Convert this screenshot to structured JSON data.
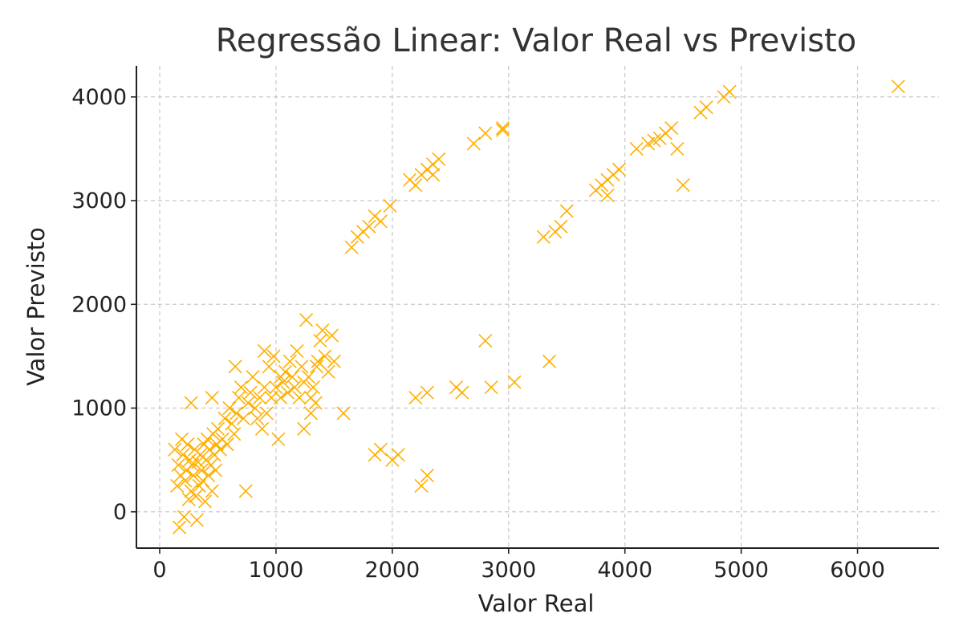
{
  "chart_data": {
    "type": "scatter",
    "title": "Regressão Linear: Valor Real vs Previsto",
    "xlabel": "Valor Real",
    "ylabel": "Valor Previsto",
    "xlim": [
      -200,
      6700
    ],
    "ylim": [
      -350,
      4300
    ],
    "xticks": [
      0,
      1000,
      2000,
      3000,
      4000,
      5000,
      6000
    ],
    "yticks": [
      0,
      1000,
      2000,
      3000,
      4000
    ],
    "xtick_labels": [
      "0",
      "1000",
      "2000",
      "3000",
      "4000",
      "5000",
      "6000"
    ],
    "ytick_labels": [
      "0",
      "1000",
      "2000",
      "3000",
      "4000"
    ],
    "grid": true,
    "marker": "x",
    "color": "#ffb000",
    "series": [
      {
        "points": [
          [
            130,
            600
          ],
          [
            150,
            250
          ],
          [
            160,
            450
          ],
          [
            170,
            -150
          ],
          [
            180,
            350
          ],
          [
            190,
            700
          ],
          [
            200,
            550
          ],
          [
            210,
            -50
          ],
          [
            220,
            300
          ],
          [
            230,
            400
          ],
          [
            240,
            650
          ],
          [
            250,
            120
          ],
          [
            260,
            500
          ],
          [
            270,
            200
          ],
          [
            280,
            450
          ],
          [
            290,
            350
          ],
          [
            300,
            600
          ],
          [
            310,
            150
          ],
          [
            320,
            -80
          ],
          [
            330,
            480
          ],
          [
            340,
            250
          ],
          [
            350,
            550
          ],
          [
            360,
            400
          ],
          [
            370,
            300
          ],
          [
            380,
            650
          ],
          [
            390,
            100
          ],
          [
            400,
            500
          ],
          [
            410,
            700
          ],
          [
            420,
            350
          ],
          [
            430,
            600
          ],
          [
            440,
            450
          ],
          [
            450,
            200
          ],
          [
            460,
            750
          ],
          [
            470,
            550
          ],
          [
            480,
            400
          ],
          [
            490,
            650
          ],
          [
            500,
            800
          ],
          [
            520,
            600
          ],
          [
            540,
            700
          ],
          [
            560,
            900
          ],
          [
            580,
            650
          ],
          [
            600,
            1000
          ],
          [
            620,
            850
          ],
          [
            640,
            750
          ],
          [
            660,
            950
          ],
          [
            680,
            1100
          ],
          [
            700,
            1200
          ],
          [
            720,
            900
          ],
          [
            740,
            200
          ],
          [
            760,
            1050
          ],
          [
            780,
            1150
          ],
          [
            800,
            1300
          ],
          [
            820,
            1000
          ],
          [
            840,
            900
          ],
          [
            860,
            1100
          ],
          [
            880,
            800
          ],
          [
            900,
            1200
          ],
          [
            920,
            950
          ],
          [
            940,
            1400
          ],
          [
            960,
            1100
          ],
          [
            980,
            1500
          ],
          [
            1000,
            1200
          ],
          [
            1020,
            700
          ],
          [
            1040,
            1100
          ],
          [
            1060,
            1250
          ],
          [
            1080,
            1350
          ],
          [
            1100,
            1150
          ],
          [
            1120,
            1450
          ],
          [
            1140,
            1300
          ],
          [
            1160,
            1200
          ],
          [
            1180,
            1550
          ],
          [
            1200,
            1100
          ],
          [
            1220,
            1400
          ],
          [
            1240,
            1250
          ],
          [
            1260,
            1850
          ],
          [
            1280,
            1300
          ],
          [
            1300,
            950
          ],
          [
            1320,
            1200
          ],
          [
            1340,
            1050
          ],
          [
            1360,
            1450
          ],
          [
            1380,
            1650
          ],
          [
            1400,
            1750
          ],
          [
            1420,
            1500
          ],
          [
            1450,
            1350
          ],
          [
            1480,
            1700
          ],
          [
            1500,
            1450
          ],
          [
            1580,
            950
          ],
          [
            270,
            1050
          ],
          [
            450,
            1100
          ],
          [
            650,
            1400
          ],
          [
            900,
            1550
          ],
          [
            1240,
            800
          ],
          [
            1300,
            1100
          ],
          [
            1350,
            1400
          ],
          [
            1040,
            1300
          ],
          [
            1700,
            2650
          ],
          [
            1800,
            2750
          ],
          [
            1850,
            2850
          ],
          [
            1980,
            2950
          ],
          [
            2150,
            3200
          ],
          [
            2250,
            3250
          ],
          [
            2300,
            3300
          ],
          [
            2350,
            3350
          ],
          [
            2400,
            3400
          ],
          [
            2700,
            3550
          ],
          [
            2800,
            3650
          ],
          [
            2950,
            3700
          ],
          [
            1650,
            2550
          ],
          [
            1750,
            2700
          ],
          [
            1900,
            2800
          ],
          [
            3300,
            2650
          ],
          [
            3400,
            2700
          ],
          [
            3450,
            2750
          ],
          [
            3500,
            2900
          ],
          [
            3750,
            3100
          ],
          [
            3800,
            3150
          ],
          [
            3850,
            3200
          ],
          [
            3900,
            3250
          ],
          [
            3950,
            3300
          ],
          [
            4100,
            3500
          ],
          [
            4200,
            3550
          ],
          [
            4300,
            3600
          ],
          [
            4350,
            3650
          ],
          [
            4400,
            3700
          ],
          [
            4450,
            3500
          ],
          [
            4500,
            3150
          ],
          [
            4650,
            3850
          ],
          [
            4700,
            3900
          ],
          [
            4850,
            4000
          ],
          [
            4900,
            4050
          ],
          [
            6350,
            4100
          ],
          [
            3850,
            3050
          ],
          [
            1850,
            550
          ],
          [
            1900,
            600
          ],
          [
            2000,
            500
          ],
          [
            2050,
            550
          ],
          [
            2250,
            250
          ],
          [
            2300,
            350
          ],
          [
            2200,
            1100
          ],
          [
            2300,
            1150
          ],
          [
            2550,
            1200
          ],
          [
            2600,
            1150
          ],
          [
            2800,
            1650
          ],
          [
            2850,
            1200
          ],
          [
            3050,
            1250
          ],
          [
            3350,
            1450
          ],
          [
            2200,
            3150
          ],
          [
            2350,
            3250
          ],
          [
            2950,
            3680
          ],
          [
            4250,
            3580
          ]
        ]
      }
    ]
  }
}
